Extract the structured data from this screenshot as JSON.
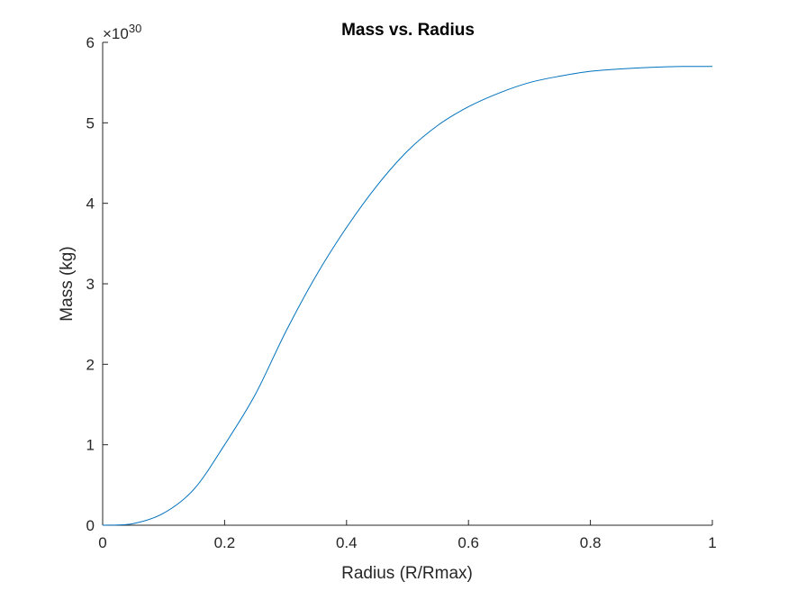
{
  "chart_data": {
    "type": "line",
    "title": "Mass vs. Radius",
    "xlabel": "Radius (R/Rmax)",
    "ylabel": "Mass (kg)",
    "y_scale_factor": "×10^30",
    "y_scale_multiplier": "×10",
    "y_scale_exponent": "30",
    "xlim": [
      0,
      1
    ],
    "ylim": [
      0,
      6
    ],
    "xticks": [
      0,
      0.2,
      0.4,
      0.6,
      0.8,
      1
    ],
    "xtick_labels": [
      "0",
      "0.2",
      "0.4",
      "0.6",
      "0.8",
      "1"
    ],
    "yticks": [
      0,
      1,
      2,
      3,
      4,
      5,
      6
    ],
    "ytick_labels": [
      "0",
      "1",
      "2",
      "3",
      "4",
      "5",
      "6"
    ],
    "grid": false,
    "series": [
      {
        "color": "#0072BD",
        "x": [
          0,
          0.05,
          0.1,
          0.15,
          0.2,
          0.25,
          0.3,
          0.35,
          0.4,
          0.45,
          0.5,
          0.55,
          0.6,
          0.65,
          0.7,
          0.75,
          0.8,
          0.85,
          0.9,
          0.95,
          1.0
        ],
        "y": [
          0,
          0.02,
          0.15,
          0.45,
          1.0,
          1.62,
          2.4,
          3.1,
          3.7,
          4.22,
          4.65,
          4.97,
          5.2,
          5.37,
          5.5,
          5.58,
          5.64,
          5.67,
          5.69,
          5.7,
          5.7
        ]
      }
    ]
  }
}
